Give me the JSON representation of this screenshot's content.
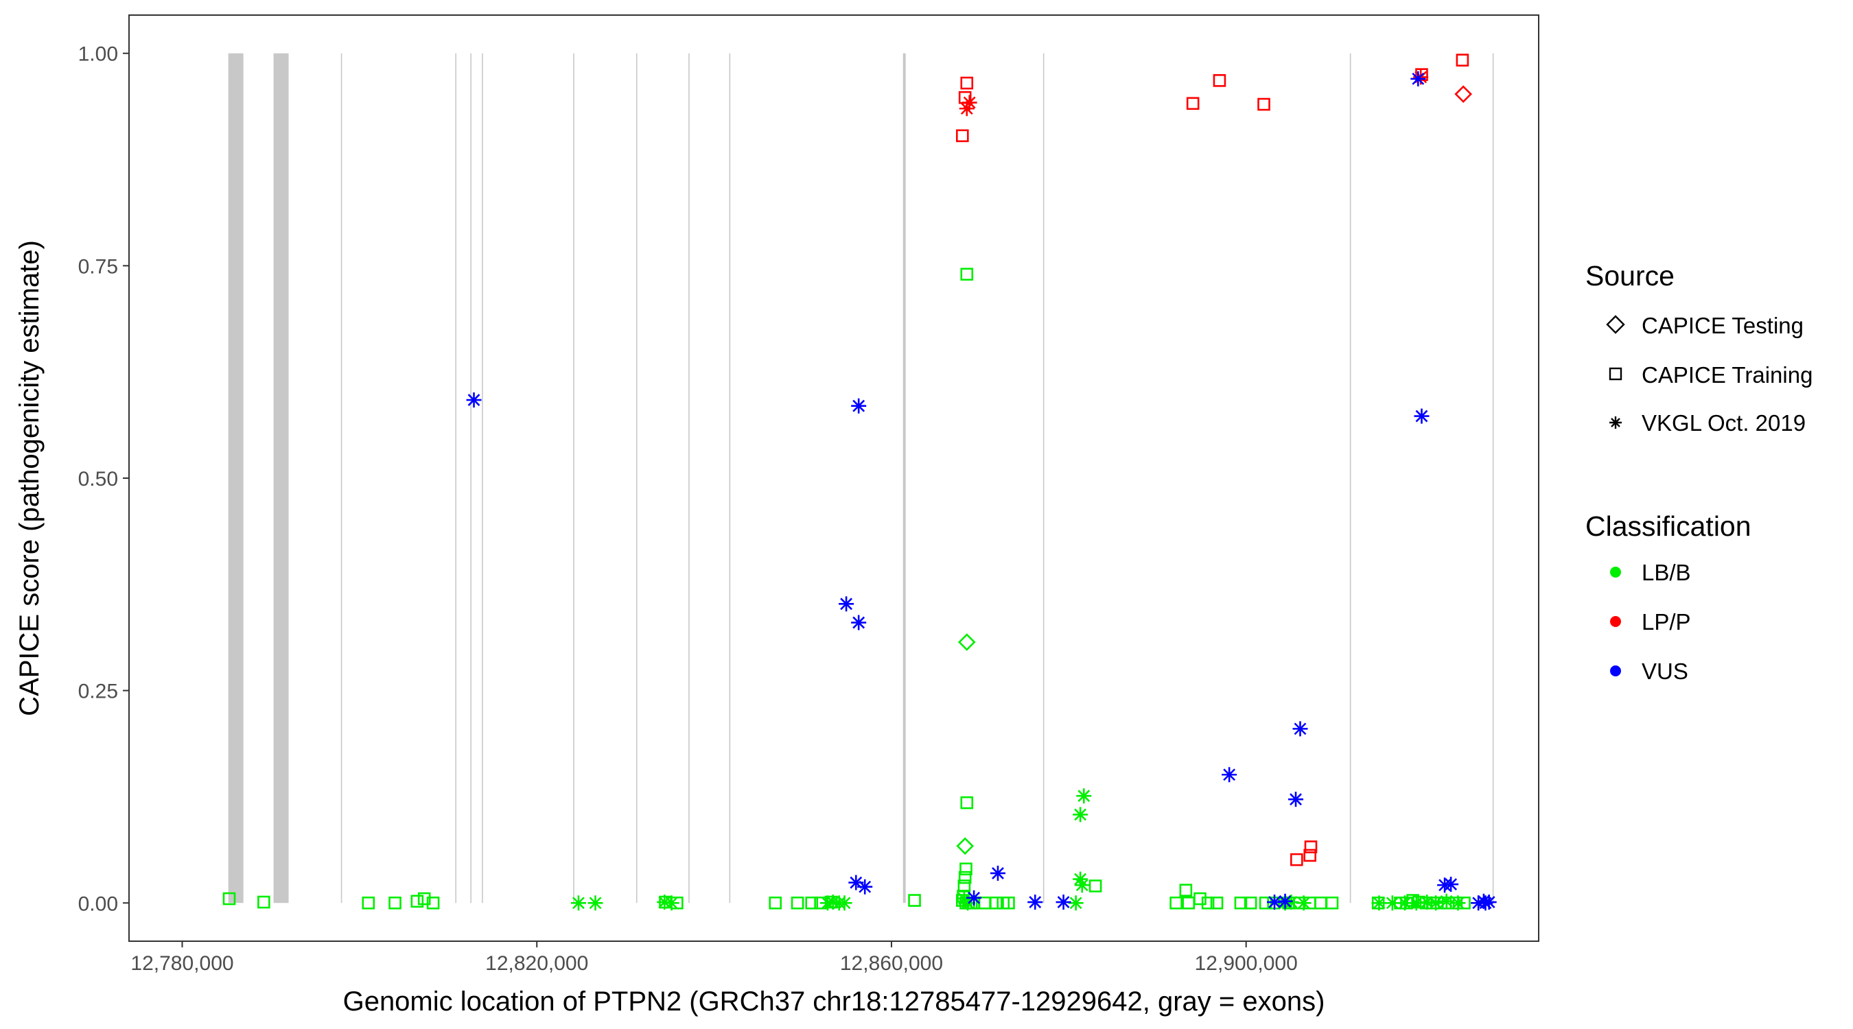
{
  "chart_data": {
    "type": "scatter",
    "xlabel": "Genomic location of PTPN2 (GRCh37 chr18:12785477-12929642, gray = exons)",
    "ylabel": "CAPICE score (pathogenicity estimate)",
    "xlim": [
      12774000,
      12933000
    ],
    "ylim": [
      -0.045,
      1.045
    ],
    "x_ticks": [
      12780000,
      12820000,
      12860000,
      12900000
    ],
    "x_tick_labels": [
      "12,780,000",
      "12,820,000",
      "12,860,000",
      "12,900,000"
    ],
    "y_ticks": [
      0,
      0.25,
      0.5,
      0.75,
      1.0
    ],
    "y_tick_labels": [
      "0.00",
      "0.25",
      "0.50",
      "0.75",
      "1.00"
    ],
    "grid": false,
    "exons": [
      [
        12785200,
        12786900
      ],
      [
        12790300,
        12792000
      ],
      [
        12797900,
        12798000
      ],
      [
        12810800,
        12810900
      ],
      [
        12812500,
        12812600
      ],
      [
        12813800,
        12813900
      ],
      [
        12824100,
        12824200
      ],
      [
        12831200,
        12831300
      ],
      [
        12837100,
        12837200
      ],
      [
        12841700,
        12841800
      ],
      [
        12861300,
        12861600
      ],
      [
        12877100,
        12877200
      ],
      [
        12911700,
        12911800
      ],
      [
        12927800,
        12927900
      ]
    ],
    "legend": {
      "placement": "right",
      "source_title": "Source",
      "source_entries": [
        {
          "label": "CAPICE Testing",
          "shape": "diamond"
        },
        {
          "label": "CAPICE Training",
          "shape": "square"
        },
        {
          "label": "VKGL Oct. 2019",
          "shape": "asterisk"
        }
      ],
      "class_title": "Classification",
      "class_entries": [
        {
          "label": "LB/B",
          "color": "#00ee00"
        },
        {
          "label": "LP/P",
          "color": "#ff0000"
        },
        {
          "label": "VUS",
          "color": "#0000ff"
        }
      ]
    },
    "colors": {
      "LB/B": "#00ee00",
      "LP/P": "#ff0000",
      "VUS": "#0000ff",
      "exon": "#c8c8c8"
    },
    "series": [
      {
        "source": "CAPICE Testing",
        "classification": "LB/B",
        "points": [
          [
            12868500,
            0.307
          ],
          [
            12868300,
            0.067
          ]
        ]
      },
      {
        "source": "CAPICE Testing",
        "classification": "LP/P",
        "points": [
          [
            12924500,
            0.952
          ]
        ]
      },
      {
        "source": "CAPICE Training",
        "classification": "LB/B",
        "points": [
          [
            12785300,
            0.005
          ],
          [
            12789200,
            0.001
          ],
          [
            12801000,
            0.0
          ],
          [
            12804000,
            0.0
          ],
          [
            12806500,
            0.002
          ],
          [
            12807300,
            0.005
          ],
          [
            12808300,
            0.0
          ],
          [
            12834500,
            0.001
          ],
          [
            12835800,
            0.0
          ],
          [
            12846900,
            0.0
          ],
          [
            12849400,
            0.0
          ],
          [
            12851000,
            0.0
          ],
          [
            12852000,
            0.0
          ],
          [
            12853200,
            0.001
          ],
          [
            12862600,
            0.003
          ],
          [
            12868500,
            0.74
          ],
          [
            12868500,
            0.118
          ],
          [
            12868400,
            0.04
          ],
          [
            12868300,
            0.03
          ],
          [
            12868200,
            0.02
          ],
          [
            12868100,
            0.008
          ],
          [
            12868000,
            0.003
          ],
          [
            12868400,
            0.0
          ],
          [
            12868700,
            0.0
          ],
          [
            12869000,
            0.0
          ],
          [
            12869300,
            0.0
          ],
          [
            12870500,
            0.0
          ],
          [
            12871800,
            0.0
          ],
          [
            12872600,
            0.0
          ],
          [
            12873200,
            0.0
          ],
          [
            12883000,
            0.02
          ],
          [
            12893200,
            0.015
          ],
          [
            12892100,
            0.0
          ],
          [
            12893500,
            0.0
          ],
          [
            12894800,
            0.005
          ],
          [
            12895700,
            0.0
          ],
          [
            12896700,
            0.0
          ],
          [
            12899400,
            0.0
          ],
          [
            12900500,
            0.0
          ],
          [
            12902200,
            0.0
          ],
          [
            12903100,
            0.0
          ],
          [
            12904800,
            0.0
          ],
          [
            12906000,
            0.0
          ],
          [
            12907200,
            0.0
          ],
          [
            12908400,
            0.0
          ],
          [
            12909700,
            0.0
          ],
          [
            12914900,
            0.0
          ],
          [
            12917400,
            0.0
          ],
          [
            12918100,
            0.0
          ],
          [
            12918800,
            0.003
          ],
          [
            12919500,
            0.001
          ],
          [
            12920300,
            0.0
          ],
          [
            12921100,
            0.0
          ],
          [
            12922000,
            0.0
          ],
          [
            12922800,
            0.0
          ],
          [
            12923700,
            0.0
          ],
          [
            12924600,
            0.0
          ]
        ]
      },
      {
        "source": "CAPICE Training",
        "classification": "LP/P",
        "points": [
          [
            12868000,
            0.903
          ],
          [
            12868300,
            0.948
          ],
          [
            12868500,
            0.965
          ],
          [
            12894000,
            0.941
          ],
          [
            12897000,
            0.968
          ],
          [
            12902000,
            0.94
          ],
          [
            12919800,
            0.975
          ],
          [
            12924400,
            0.992
          ],
          [
            12907300,
            0.066
          ],
          [
            12907200,
            0.056
          ],
          [
            12905700,
            0.051
          ]
        ]
      },
      {
        "source": "VKGL Oct. 2019",
        "classification": "LB/B",
        "points": [
          [
            12824700,
            0.0
          ],
          [
            12826600,
            0.0
          ],
          [
            12834400,
            0.001
          ],
          [
            12835200,
            0.0
          ],
          [
            12852800,
            0.0
          ],
          [
            12853400,
            0.001
          ],
          [
            12854100,
            0.0
          ],
          [
            12854700,
            0.0
          ],
          [
            12868200,
            0.005
          ],
          [
            12868600,
            0.0
          ],
          [
            12880800,
            0.0
          ],
          [
            12881300,
            0.028
          ],
          [
            12881500,
            0.021
          ],
          [
            12881700,
            0.126
          ],
          [
            12881300,
            0.104
          ],
          [
            12904400,
            0.0
          ],
          [
            12905100,
            0.001
          ],
          [
            12906500,
            0.0
          ],
          [
            12915000,
            0.0
          ],
          [
            12916500,
            0.0
          ],
          [
            12917900,
            0.0
          ],
          [
            12919200,
            0.0
          ],
          [
            12920400,
            0.001
          ],
          [
            12921400,
            0.0
          ],
          [
            12922600,
            0.002
          ],
          [
            12923900,
            0.0
          ]
        ]
      },
      {
        "source": "VKGL Oct. 2019",
        "classification": "LP/P",
        "points": [
          [
            12868500,
            0.935
          ],
          [
            12868800,
            0.942
          ],
          [
            12919700,
            0.972
          ]
        ]
      },
      {
        "source": "VKGL Oct. 2019",
        "classification": "VUS",
        "points": [
          [
            12812900,
            0.592
          ],
          [
            12856300,
            0.585
          ],
          [
            12854900,
            0.352
          ],
          [
            12856300,
            0.33
          ],
          [
            12856000,
            0.024
          ],
          [
            12857000,
            0.019
          ],
          [
            12869300,
            0.006
          ],
          [
            12872000,
            0.035
          ],
          [
            12876200,
            0.001
          ],
          [
            12879400,
            0.001
          ],
          [
            12898100,
            0.151
          ],
          [
            12906100,
            0.205
          ],
          [
            12905600,
            0.122
          ],
          [
            12903200,
            0.001
          ],
          [
            12904400,
            0.002
          ],
          [
            12919400,
            0.97
          ],
          [
            12919800,
            0.573
          ],
          [
            12922400,
            0.021
          ],
          [
            12923100,
            0.022
          ],
          [
            12926800,
            0.002
          ],
          [
            12927400,
            0.001
          ],
          [
            12926200,
            0.0
          ],
          [
            12927000,
            0.0
          ]
        ]
      }
    ]
  }
}
